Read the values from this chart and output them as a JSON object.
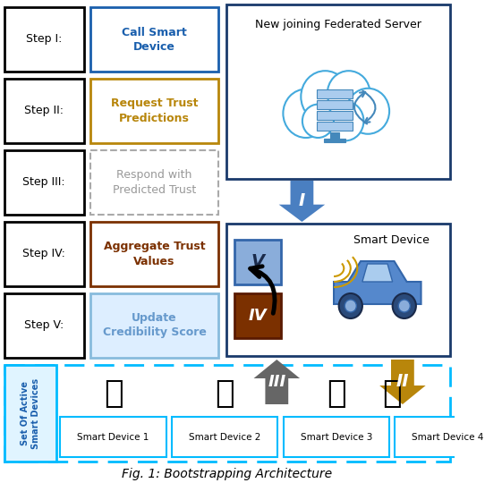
{
  "title": "Fig. 1: Bootstrapping Architecture",
  "steps": [
    {
      "label": "Step I:",
      "desc": "Call Smart\nDevice",
      "color": "#1a5fad",
      "border": "#1a5fad"
    },
    {
      "label": "Step II:",
      "desc": "Request Trust\nPredictions",
      "color": "#b8860b",
      "border": "#b8860b"
    },
    {
      "label": "Step III:",
      "desc": "Respond with\nPredicted Trust",
      "color": "#999999",
      "border": "#aaaaaa"
    },
    {
      "label": "Step IV:",
      "desc": "Aggregate Trust\nValues",
      "color": "#7b3000",
      "border": "#7b3000"
    },
    {
      "label": "Step V:",
      "desc": "Update\nCredibility Score",
      "color": "#6699cc",
      "border": "#88bbdd"
    }
  ],
  "server_box_color": "#1a3a6b",
  "server_title": "New joining Federated Server",
  "smart_device_box_color": "#1a3a6b",
  "smart_device_label": "Smart Device",
  "arrow_I_color": "#4a7fc1",
  "arrow_II_color": "#b8860b",
  "arrow_III_color": "#666666",
  "box_V_color": "#8aadda",
  "box_IV_color": "#7b3000",
  "devices": [
    "Smart Device 1",
    "Smart Device 2",
    "Smart Device 3",
    "Smart Device 4"
  ],
  "devices_border": "#00aaff",
  "set_label": "Set Of Active\nSmart Devices",
  "bg_color": "#ffffff"
}
